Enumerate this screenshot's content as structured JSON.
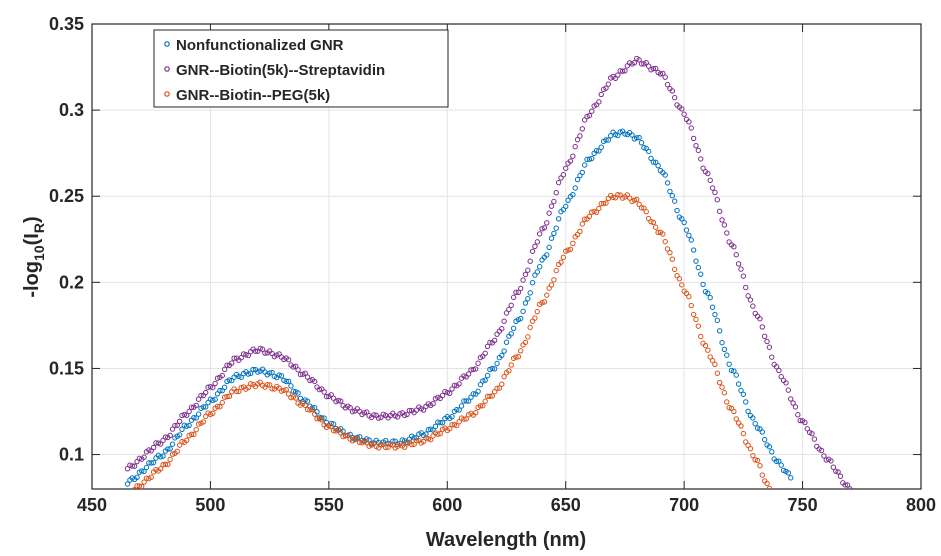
{
  "chart_data": {
    "type": "scatter",
    "title": "",
    "xlabel": "Wavelength (nm)",
    "ylabel_main": "-log",
    "ylabel_sub1": "10",
    "ylabel_mid": "(I",
    "ylabel_sub2": "R",
    "ylabel_end": ")",
    "xlim": [
      450,
      800
    ],
    "ylim": [
      0.08,
      0.35
    ],
    "xticks": [
      450,
      500,
      550,
      600,
      650,
      700,
      750,
      800
    ],
    "xtick_labels": [
      "450",
      "500",
      "550",
      "600",
      "650",
      "700",
      "750",
      "800"
    ],
    "yticks": [
      0.1,
      0.15,
      0.2,
      0.25,
      0.3,
      0.35
    ],
    "ytick_labels": [
      "0.1",
      "0.15",
      "0.2",
      "0.25",
      "0.3",
      "0.35"
    ],
    "grid": true,
    "legend_position": "top-left",
    "x_range": [
      465,
      772
    ],
    "x_step": 1,
    "series": [
      {
        "name": "Nonfunctionalized GNR",
        "color": "#0072BD",
        "points": [
          [
            465,
            0.084
          ],
          [
            480,
            0.1
          ],
          [
            490,
            0.117
          ],
          [
            500,
            0.131
          ],
          [
            510,
            0.145
          ],
          [
            520,
            0.149
          ],
          [
            530,
            0.145
          ],
          [
            540,
            0.131
          ],
          [
            550,
            0.118
          ],
          [
            560,
            0.11
          ],
          [
            570,
            0.107
          ],
          [
            580,
            0.107
          ],
          [
            590,
            0.112
          ],
          [
            600,
            0.121
          ],
          [
            610,
            0.133
          ],
          [
            620,
            0.151
          ],
          [
            630,
            0.178
          ],
          [
            640,
            0.212
          ],
          [
            650,
            0.245
          ],
          [
            660,
            0.272
          ],
          [
            670,
            0.286
          ],
          [
            675,
            0.287
          ],
          [
            680,
            0.284
          ],
          [
            690,
            0.266
          ],
          [
            700,
            0.234
          ],
          [
            710,
            0.193
          ],
          [
            720,
            0.15
          ],
          [
            730,
            0.118
          ],
          [
            740,
            0.095
          ],
          [
            745,
            0.087
          ]
        ]
      },
      {
        "name": "GNR--Biotin(5k)--Streptavidin",
        "color": "#7E2F8E",
        "points": [
          [
            465,
            0.092
          ],
          [
            480,
            0.108
          ],
          [
            490,
            0.124
          ],
          [
            500,
            0.139
          ],
          [
            510,
            0.155
          ],
          [
            520,
            0.161
          ],
          [
            530,
            0.157
          ],
          [
            540,
            0.146
          ],
          [
            550,
            0.134
          ],
          [
            560,
            0.126
          ],
          [
            570,
            0.122
          ],
          [
            580,
            0.123
          ],
          [
            590,
            0.127
          ],
          [
            600,
            0.136
          ],
          [
            610,
            0.148
          ],
          [
            620,
            0.167
          ],
          [
            630,
            0.195
          ],
          [
            640,
            0.23
          ],
          [
            650,
            0.266
          ],
          [
            660,
            0.298
          ],
          [
            670,
            0.319
          ],
          [
            680,
            0.329
          ],
          [
            690,
            0.322
          ],
          [
            700,
            0.298
          ],
          [
            710,
            0.262
          ],
          [
            720,
            0.222
          ],
          [
            730,
            0.183
          ],
          [
            740,
            0.148
          ],
          [
            750,
            0.119
          ],
          [
            760,
            0.098
          ],
          [
            770,
            0.08
          ]
        ]
      },
      {
        "name": "GNR--Biotin--PEG(5k)",
        "color": "#D95319",
        "points": [
          [
            468,
            0.08
          ],
          [
            480,
            0.093
          ],
          [
            490,
            0.109
          ],
          [
            500,
            0.124
          ],
          [
            510,
            0.137
          ],
          [
            520,
            0.141
          ],
          [
            530,
            0.138
          ],
          [
            540,
            0.128
          ],
          [
            550,
            0.116
          ],
          [
            560,
            0.109
          ],
          [
            570,
            0.105
          ],
          [
            580,
            0.105
          ],
          [
            590,
            0.108
          ],
          [
            600,
            0.115
          ],
          [
            610,
            0.123
          ],
          [
            620,
            0.136
          ],
          [
            630,
            0.158
          ],
          [
            640,
            0.188
          ],
          [
            650,
            0.217
          ],
          [
            660,
            0.239
          ],
          [
            670,
            0.25
          ],
          [
            675,
            0.25
          ],
          [
            680,
            0.247
          ],
          [
            690,
            0.229
          ],
          [
            700,
            0.196
          ],
          [
            710,
            0.16
          ],
          [
            720,
            0.126
          ],
          [
            730,
            0.098
          ],
          [
            736,
            0.08
          ]
        ]
      }
    ]
  }
}
